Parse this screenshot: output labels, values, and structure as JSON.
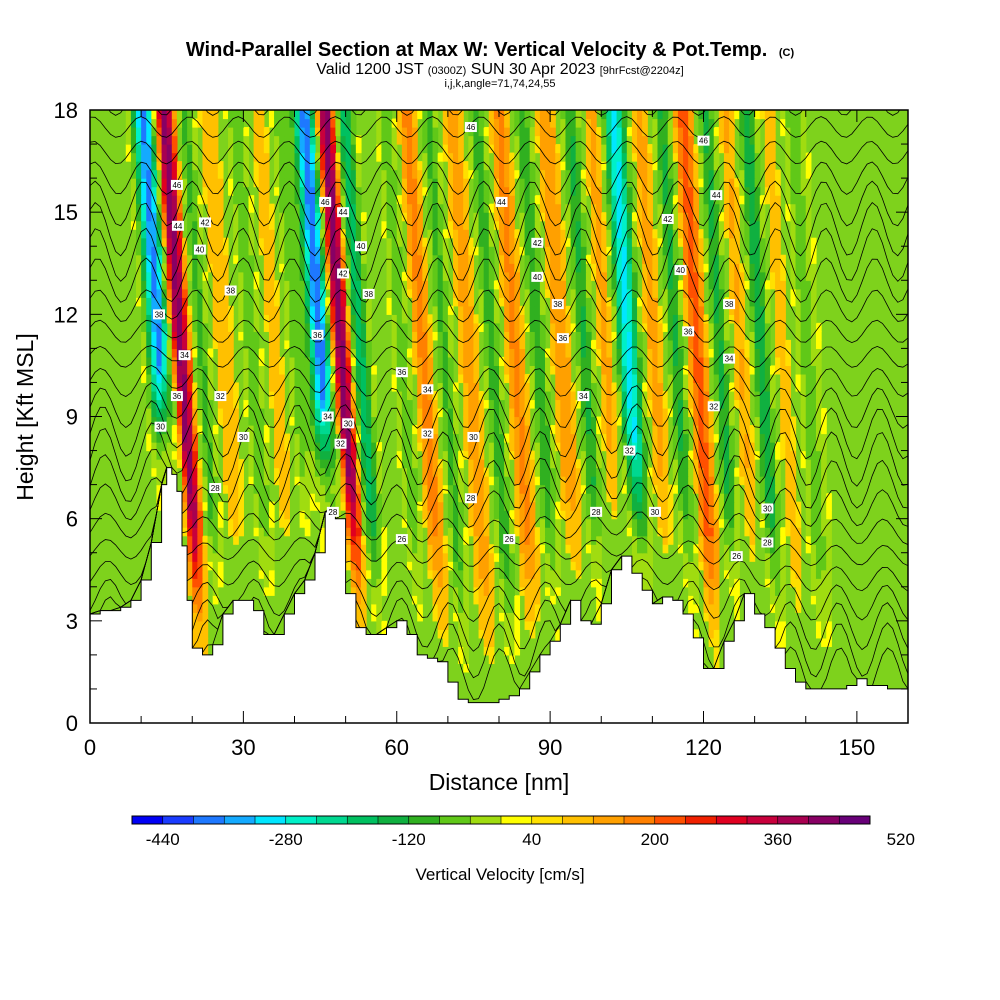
{
  "chart_data": {
    "type": "heatmap",
    "title": "Wind-Parallel Section at Max W: Vertical Velocity & Pot.Temp.",
    "title_mark": "(C)",
    "subtitle": {
      "prefix": "Valid 1200 JST",
      "utc": "(0300Z)",
      "date": "SUN 30 Apr 2023",
      "forecast": "[9hrFcst@2204z]"
    },
    "sub_subtitle": "i,j,k,angle=71,74,24,55",
    "xlabel": "Distance [nm]",
    "ylabel": "Height [Kft MSL]",
    "xlim": [
      0,
      160
    ],
    "ylim": [
      0,
      18
    ],
    "x_ticks": [
      0,
      30,
      60,
      90,
      120,
      150
    ],
    "y_ticks": [
      0,
      3,
      6,
      9,
      12,
      15,
      18
    ],
    "colorbar": {
      "title": "Vertical Velocity [cm/s]",
      "min": -480,
      "step": 40,
      "labels": [
        -440,
        -280,
        -120,
        40,
        200,
        360,
        520
      ],
      "colors": [
        "#0000f5",
        "#1a3cff",
        "#1e78ff",
        "#14aaff",
        "#00e6ff",
        "#00f0c8",
        "#00d890",
        "#00c060",
        "#10b040",
        "#30b020",
        "#60c818",
        "#a0dc10",
        "#ffff00",
        "#ffe000",
        "#ffc000",
        "#ffa000",
        "#ff8000",
        "#ff5000",
        "#f02000",
        "#e00020",
        "#c8003c",
        "#a80050",
        "#880064",
        "#680078"
      ]
    },
    "terrain_profile": {
      "distance_nm": [
        0,
        2,
        4,
        6,
        8,
        10,
        12,
        14,
        15,
        16,
        17,
        18,
        19,
        20,
        22,
        24,
        26,
        28,
        30,
        32,
        34,
        36,
        38,
        40,
        42,
        44,
        46,
        47,
        48,
        50,
        52,
        54,
        56,
        58,
        60,
        62,
        64,
        66,
        68,
        70,
        72,
        74,
        76,
        78,
        80,
        82,
        84,
        86,
        88,
        90,
        92,
        94,
        96,
        98,
        100,
        102,
        104,
        106,
        108,
        110,
        112,
        114,
        116,
        118,
        120,
        122,
        124,
        126,
        128,
        130,
        132,
        134,
        136,
        138,
        140,
        144,
        148,
        150,
        152,
        156,
        160
      ],
      "height_kft": [
        3.2,
        3.3,
        3.3,
        3.4,
        3.6,
        4.2,
        5.3,
        7.0,
        7.5,
        7.3,
        6.8,
        5.2,
        3.6,
        2.2,
        2.0,
        2.3,
        3.2,
        3.6,
        3.6,
        3.3,
        2.6,
        2.6,
        3.2,
        3.8,
        4.2,
        5.0,
        6.2,
        6.3,
        6.0,
        3.8,
        2.8,
        2.6,
        2.6,
        2.8,
        3.0,
        2.6,
        2.0,
        1.9,
        1.8,
        1.2,
        0.7,
        0.6,
        0.6,
        0.6,
        0.7,
        0.8,
        1.0,
        1.5,
        2.0,
        2.4,
        2.9,
        3.6,
        3.0,
        2.9,
        3.5,
        4.5,
        4.9,
        4.4,
        3.9,
        3.5,
        3.7,
        3.6,
        3.2,
        2.5,
        1.6,
        1.6,
        2.4,
        3.0,
        3.8,
        3.2,
        2.8,
        2.2,
        1.6,
        1.2,
        1.0,
        1.0,
        1.1,
        1.3,
        1.1,
        1.0,
        1.0
      ]
    },
    "vertical_velocity_bands": [
      {
        "x_nm": 14.5,
        "w_cms": -380,
        "width_nm": 2.2
      },
      {
        "x_nm": 18.5,
        "w_cms": 440,
        "width_nm": 2.0
      },
      {
        "x_nm": 22.5,
        "w_cms": -100,
        "width_nm": 1.8
      },
      {
        "x_nm": 27,
        "w_cms": 120,
        "width_nm": 2.0
      },
      {
        "x_nm": 32.5,
        "w_cms": -80,
        "width_nm": 1.8
      },
      {
        "x_nm": 37,
        "w_cms": 100,
        "width_nm": 2.0
      },
      {
        "x_nm": 41,
        "w_cms": -60,
        "width_nm": 1.8
      },
      {
        "x_nm": 46,
        "w_cms": -400,
        "width_nm": 2.2
      },
      {
        "x_nm": 50,
        "w_cms": 460,
        "width_nm": 2.0
      },
      {
        "x_nm": 53.5,
        "w_cms": -200,
        "width_nm": 2.0
      },
      {
        "x_nm": 58,
        "w_cms": 60,
        "width_nm": 2.0
      },
      {
        "x_nm": 62,
        "w_cms": -80,
        "width_nm": 2.0
      },
      {
        "x_nm": 66,
        "w_cms": 180,
        "width_nm": 2.4
      },
      {
        "x_nm": 70,
        "w_cms": -100,
        "width_nm": 2.0
      },
      {
        "x_nm": 75,
        "w_cms": 140,
        "width_nm": 2.4
      },
      {
        "x_nm": 79.5,
        "w_cms": -110,
        "width_nm": 2.0
      },
      {
        "x_nm": 84,
        "w_cms": 170,
        "width_nm": 2.4
      },
      {
        "x_nm": 88.5,
        "w_cms": -120,
        "width_nm": 2.0
      },
      {
        "x_nm": 93,
        "w_cms": 160,
        "width_nm": 2.4
      },
      {
        "x_nm": 97.5,
        "w_cms": -130,
        "width_nm": 2.0
      },
      {
        "x_nm": 102,
        "w_cms": 150,
        "width_nm": 2.4
      },
      {
        "x_nm": 106,
        "w_cms": -300,
        "width_nm": 2.4
      },
      {
        "x_nm": 111,
        "w_cms": 140,
        "width_nm": 2.4
      },
      {
        "x_nm": 115.5,
        "w_cms": -140,
        "width_nm": 2.0
      },
      {
        "x_nm": 119.5,
        "w_cms": 220,
        "width_nm": 2.4
      },
      {
        "x_nm": 124,
        "w_cms": -140,
        "width_nm": 2.0
      },
      {
        "x_nm": 128,
        "w_cms": 130,
        "width_nm": 2.4
      },
      {
        "x_nm": 132,
        "w_cms": -160,
        "width_nm": 2.0
      },
      {
        "x_nm": 136,
        "w_cms": 100,
        "width_nm": 2.4
      },
      {
        "x_nm": 141,
        "w_cms": -60,
        "width_nm": 2.4
      }
    ],
    "potential_temperature_contour_labels": [
      {
        "x_nm": 17,
        "y_kft": 15.8,
        "value": "46"
      },
      {
        "x_nm": 17.2,
        "y_kft": 14.6,
        "value": "44"
      },
      {
        "x_nm": 22.5,
        "y_kft": 14.7,
        "value": "42"
      },
      {
        "x_nm": 21.5,
        "y_kft": 13.9,
        "value": "40"
      },
      {
        "x_nm": 27.5,
        "y_kft": 12.7,
        "value": "38"
      },
      {
        "x_nm": 13.5,
        "y_kft": 12.0,
        "value": "38"
      },
      {
        "x_nm": 18.5,
        "y_kft": 10.8,
        "value": "34"
      },
      {
        "x_nm": 17,
        "y_kft": 9.6,
        "value": "36"
      },
      {
        "x_nm": 13.8,
        "y_kft": 8.7,
        "value": "30"
      },
      {
        "x_nm": 25.5,
        "y_kft": 9.6,
        "value": "32"
      },
      {
        "x_nm": 30,
        "y_kft": 8.4,
        "value": "30"
      },
      {
        "x_nm": 24.5,
        "y_kft": 6.9,
        "value": "28"
      },
      {
        "x_nm": 46,
        "y_kft": 15.3,
        "value": "46"
      },
      {
        "x_nm": 49.5,
        "y_kft": 15.0,
        "value": "44"
      },
      {
        "x_nm": 53,
        "y_kft": 14.0,
        "value": "40"
      },
      {
        "x_nm": 49.5,
        "y_kft": 13.2,
        "value": "42"
      },
      {
        "x_nm": 54.5,
        "y_kft": 12.6,
        "value": "38"
      },
      {
        "x_nm": 44.5,
        "y_kft": 11.4,
        "value": "36"
      },
      {
        "x_nm": 61,
        "y_kft": 10.3,
        "value": "36"
      },
      {
        "x_nm": 66,
        "y_kft": 9.8,
        "value": "34"
      },
      {
        "x_nm": 46.5,
        "y_kft": 9.0,
        "value": "34"
      },
      {
        "x_nm": 50.5,
        "y_kft": 8.8,
        "value": "30"
      },
      {
        "x_nm": 49,
        "y_kft": 8.2,
        "value": "32"
      },
      {
        "x_nm": 66,
        "y_kft": 8.5,
        "value": "32"
      },
      {
        "x_nm": 75,
        "y_kft": 8.4,
        "value": "30"
      },
      {
        "x_nm": 47.5,
        "y_kft": 6.2,
        "value": "28"
      },
      {
        "x_nm": 61,
        "y_kft": 5.4,
        "value": "26"
      },
      {
        "x_nm": 74.5,
        "y_kft": 6.6,
        "value": "28"
      },
      {
        "x_nm": 82,
        "y_kft": 5.4,
        "value": "26"
      },
      {
        "x_nm": 74.5,
        "y_kft": 17.5,
        "value": "46"
      },
      {
        "x_nm": 80.5,
        "y_kft": 15.3,
        "value": "44"
      },
      {
        "x_nm": 87.5,
        "y_kft": 14.1,
        "value": "42"
      },
      {
        "x_nm": 87.5,
        "y_kft": 13.1,
        "value": "40"
      },
      {
        "x_nm": 91.5,
        "y_kft": 12.3,
        "value": "38"
      },
      {
        "x_nm": 92.5,
        "y_kft": 11.3,
        "value": "36"
      },
      {
        "x_nm": 96.5,
        "y_kft": 9.6,
        "value": "34"
      },
      {
        "x_nm": 105.5,
        "y_kft": 8.0,
        "value": "32"
      },
      {
        "x_nm": 99,
        "y_kft": 6.2,
        "value": "28"
      },
      {
        "x_nm": 110.5,
        "y_kft": 6.2,
        "value": "30"
      },
      {
        "x_nm": 120,
        "y_kft": 17.1,
        "value": "46"
      },
      {
        "x_nm": 122.5,
        "y_kft": 15.5,
        "value": "44"
      },
      {
        "x_nm": 113,
        "y_kft": 14.8,
        "value": "42"
      },
      {
        "x_nm": 115.5,
        "y_kft": 13.3,
        "value": "40"
      },
      {
        "x_nm": 125,
        "y_kft": 12.3,
        "value": "38"
      },
      {
        "x_nm": 117,
        "y_kft": 11.5,
        "value": "36"
      },
      {
        "x_nm": 125,
        "y_kft": 10.7,
        "value": "34"
      },
      {
        "x_nm": 122,
        "y_kft": 9.3,
        "value": "32"
      },
      {
        "x_nm": 132.5,
        "y_kft": 6.3,
        "value": "30"
      },
      {
        "x_nm": 132.5,
        "y_kft": 5.3,
        "value": "28"
      },
      {
        "x_nm": 126.5,
        "y_kft": 4.9,
        "value": "26"
      }
    ]
  }
}
